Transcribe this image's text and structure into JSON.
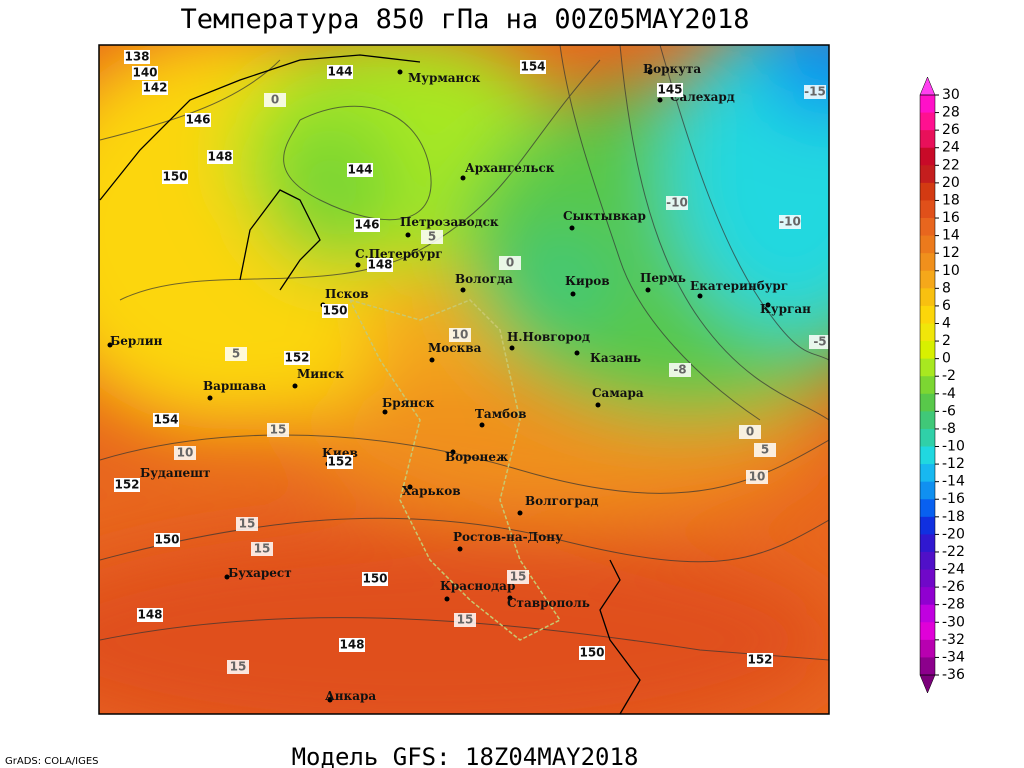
{
  "title": "Температура 850 гПа на 00Z05MAY2018",
  "subtitle": "Модель GFS: 18Z04MAY2018",
  "credit": "GrADS: COLA/IGES",
  "colorbar": {
    "ticks": [
      30,
      28,
      26,
      24,
      22,
      20,
      18,
      16,
      14,
      12,
      10,
      8,
      6,
      4,
      2,
      0,
      -2,
      -4,
      -6,
      -8,
      -10,
      -12,
      -14,
      -16,
      -18,
      -20,
      -22,
      -24,
      -26,
      -28,
      -30,
      -32,
      -34,
      -36
    ],
    "colors": [
      "#ff10c8",
      "#ff1090",
      "#e8105a",
      "#c80a28",
      "#c41e1e",
      "#d33a12",
      "#e0501a",
      "#e8661e",
      "#ec7a1c",
      "#f0901c",
      "#f5a81a",
      "#f8c010",
      "#fcd60a",
      "#f0e60a",
      "#d8f000",
      "#a8e820",
      "#7cd632",
      "#58c84a",
      "#40c878",
      "#30d0a8",
      "#20d8e0",
      "#18b8f0",
      "#1090f0",
      "#0860f0",
      "#1030e0",
      "#3018d0",
      "#5010c8",
      "#7008c8",
      "#9000d0",
      "#c000e0",
      "#e000d8",
      "#b800b0",
      "#8c008c"
    ],
    "over_color": "#ff40f0",
    "under_color": "#7a007a"
  },
  "cities": [
    "Мурманск",
    "Архангельск",
    "Петрозаводск",
    "С.Петербург",
    "Вологда",
    "Псков",
    "Москва",
    "Н.Новгород",
    "Казань",
    "Киров",
    "Сыктывкар",
    "Пермь",
    "Екатеринбург",
    "Курган",
    "Воркута",
    "Салехард",
    "Берлин",
    "Варшава",
    "Минск",
    "Брянск",
    "Тамбов",
    "Воронеж",
    "Киев",
    "Харьков",
    "Волгоград",
    "Самара",
    "Будапешт",
    "Ростов-на-Дону",
    "Краснодар",
    "Ставрополь",
    "Бухарест",
    "Анкара"
  ],
  "height_labels": [
    138,
    140,
    142,
    146,
    148,
    150,
    144,
    154,
    144,
    146,
    148,
    150,
    152,
    154,
    152,
    150,
    148,
    150,
    148,
    150,
    152,
    152,
    145
  ],
  "temperature_labels": [
    -15,
    -10,
    -10,
    -8,
    -5,
    0,
    5,
    0,
    10,
    5,
    10,
    15,
    15,
    15,
    15,
    15,
    15,
    10,
    5,
    0
  ]
}
